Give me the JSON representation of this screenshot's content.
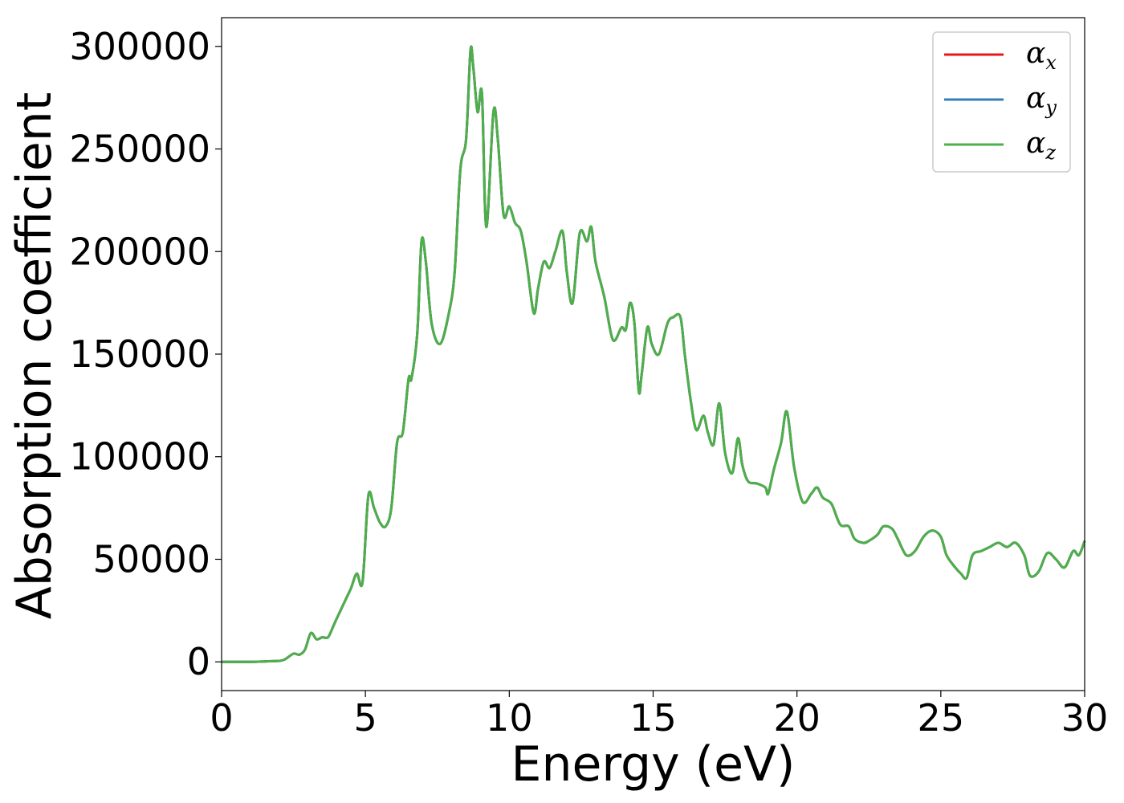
{
  "chart_data": {
    "type": "line",
    "title": "",
    "xlabel": "Energy (eV)",
    "ylabel": "Absorption coefficient",
    "xlim": [
      0,
      30
    ],
    "ylim": [
      -14000,
      314000
    ],
    "xticks": [
      0,
      5,
      10,
      15,
      20,
      25,
      30
    ],
    "xtick_labels": [
      "0",
      "5",
      "10",
      "15",
      "20",
      "25",
      "30"
    ],
    "yticks": [
      0,
      50000,
      100000,
      150000,
      200000,
      250000,
      300000
    ],
    "ytick_labels": [
      "0",
      "50000",
      "100000",
      "150000",
      "200000",
      "250000",
      "300000"
    ],
    "grid": false,
    "legend_position": "top-right",
    "colors": {
      "alpha_x": "#e41a1c",
      "alpha_y": "#377eb8",
      "alpha_z": "#4daf4a"
    },
    "series": [
      {
        "name": "α_x",
        "symbol": "α",
        "subscript": "x",
        "color": "#e41a1c",
        "visible_behind": true
      },
      {
        "name": "α_y",
        "symbol": "α",
        "subscript": "y",
        "color": "#377eb8",
        "visible_behind": true
      },
      {
        "name": "α_z",
        "symbol": "α",
        "subscript": "z",
        "color": "#4daf4a",
        "visible_behind": false
      }
    ],
    "x": [
      0,
      1,
      1.5,
      2,
      2.2,
      2.5,
      2.7,
      2.9,
      3.1,
      3.3,
      3.5,
      3.7,
      3.9,
      4.1,
      4.3,
      4.5,
      4.7,
      4.9,
      5.1,
      5.3,
      5.5,
      5.7,
      5.9,
      6.1,
      6.3,
      6.5,
      6.6,
      6.8,
      6.95,
      7.1,
      7.3,
      7.6,
      7.9,
      8.1,
      8.3,
      8.5,
      8.65,
      8.75,
      8.9,
      9.05,
      9.2,
      9.45,
      9.6,
      9.8,
      10.0,
      10.2,
      10.4,
      10.6,
      10.85,
      11.0,
      11.2,
      11.4,
      11.6,
      11.85,
      12.0,
      12.2,
      12.45,
      12.7,
      12.85,
      13.0,
      13.3,
      13.6,
      13.9,
      14.05,
      14.2,
      14.35,
      14.5,
      14.6,
      14.8,
      14.95,
      15.2,
      15.5,
      15.7,
      15.95,
      16.1,
      16.3,
      16.5,
      16.75,
      16.9,
      17.1,
      17.3,
      17.5,
      17.75,
      17.95,
      18.1,
      18.3,
      18.6,
      18.9,
      19.0,
      19.2,
      19.45,
      19.65,
      19.9,
      20.2,
      20.5,
      20.7,
      20.9,
      21.2,
      21.5,
      21.8,
      22.0,
      22.3,
      22.5,
      22.8,
      23.0,
      23.3,
      23.5,
      23.8,
      24.1,
      24.4,
      24.7,
      25.0,
      25.2,
      25.5,
      25.7,
      25.9,
      26.1,
      26.4,
      26.7,
      27.0,
      27.3,
      27.6,
      27.9,
      28.1,
      28.4,
      28.7,
      29.0,
      29.3,
      29.6,
      29.8,
      30.0
    ],
    "y": [
      0,
      0,
      200,
      500,
      1200,
      4000,
      3500,
      6000,
      14000,
      11000,
      12000,
      12000,
      18000,
      24000,
      30000,
      36000,
      43000,
      39000,
      81000,
      75000,
      68000,
      66000,
      75000,
      107000,
      112000,
      138000,
      138000,
      160000,
      205000,
      195000,
      165000,
      155000,
      170000,
      190000,
      240000,
      255000,
      298000,
      290000,
      268000,
      277000,
      212000,
      268000,
      255000,
      218000,
      222000,
      214000,
      210000,
      195000,
      170000,
      182000,
      195000,
      192000,
      200000,
      210000,
      190000,
      175000,
      209000,
      205000,
      212000,
      195000,
      178000,
      157000,
      163000,
      162000,
      175000,
      165000,
      132000,
      140000,
      163000,
      155000,
      150000,
      165000,
      168000,
      168000,
      150000,
      128000,
      113000,
      120000,
      112000,
      106000,
      126000,
      102000,
      92000,
      109000,
      96000,
      88000,
      87000,
      85000,
      82000,
      94000,
      107000,
      122000,
      95000,
      78000,
      82000,
      85000,
      80000,
      77000,
      67000,
      66000,
      60000,
      58000,
      59000,
      62000,
      66000,
      65000,
      60000,
      52000,
      54000,
      61000,
      64000,
      61000,
      52000,
      46000,
      43000,
      41000,
      52000,
      54000,
      56000,
      58000,
      56000,
      58000,
      52000,
      42000,
      44000,
      53000,
      50000,
      46000,
      54000,
      52000,
      59000
    ]
  }
}
